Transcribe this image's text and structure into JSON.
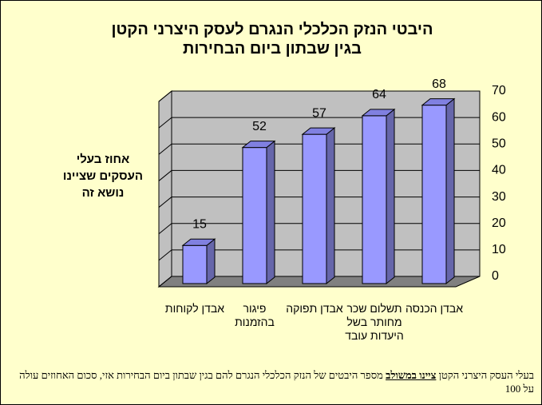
{
  "chart_data": {
    "type": "bar3d",
    "title": [
      "היבטי הנזק הכלכלי הנגרם לעסק היצרני הקטן",
      "בגין שבתון  ביום הבחירות"
    ],
    "y_label": "אחוז בעלי העסקים שציינו נושא זה",
    "categories": [
      "אבדן לקוחות",
      "פיגור בהזמנות",
      "אבדן תפוקה",
      "תשלום שכר מחותר בשל היעדות עובד",
      "אבדן הכנסה"
    ],
    "values": [
      15,
      52,
      57,
      64,
      68
    ],
    "color": "#9999ff",
    "ylim": [
      0,
      70
    ],
    "yticks": [
      0,
      10,
      20,
      30,
      40,
      50,
      60,
      70
    ],
    "grid": true,
    "note": {
      "before": "בעלי העסק היצרני הקטן ",
      "emphasis": "ציינו במשולב",
      "after": " מספר היבטים של הנזק הכלכלי הנגרם להם בגין שבתון ביום הבחירות אזי, סכום האחוזים עולה על 100"
    }
  }
}
